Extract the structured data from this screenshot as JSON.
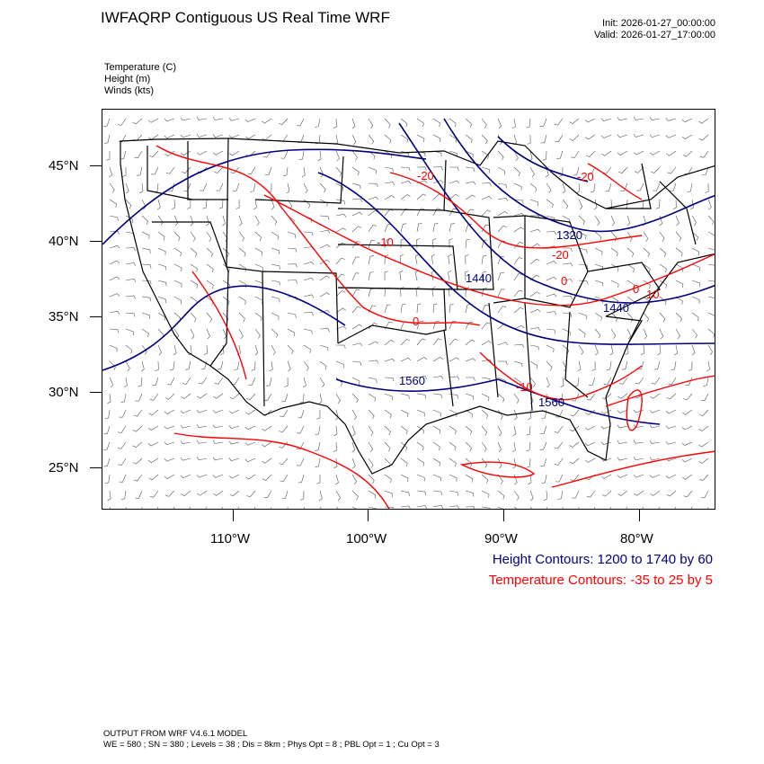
{
  "header": {
    "title": "IWFAQRP Contiguous US Real Time WRF",
    "init": "Init: 2026-01-27_00:00:00",
    "valid": "Valid: 2026-01-27_17:00:00"
  },
  "fields": {
    "temperature": "Temperature   (C)",
    "height": "Height   (m)",
    "winds": "Winds   (kts)"
  },
  "axes": {
    "lat_labels": [
      "45°N",
      "40°N",
      "35°N",
      "30°N",
      "25°N"
    ],
    "lon_labels": [
      "110°W",
      "100°W",
      "90°W",
      "80°W"
    ]
  },
  "contour_labels": {
    "height": [
      "1320",
      "1440",
      "1440",
      "1560",
      "1560"
    ],
    "temperature": [
      "-20",
      "-20",
      "-20",
      "-10",
      "-10",
      "0",
      "0",
      "0",
      "10"
    ]
  },
  "legend": {
    "height": "Height Contours: 1200 to 1740 by 60",
    "temperature": "Temperature Contours: -35 to 25 by 5"
  },
  "footer": {
    "line1": "OUTPUT FROM WRF V4.6.1 MODEL",
    "line2": "WE = 580 ; SN = 380 ; Levels = 38 ; Dis = 8km ; Phys Opt = 8 ; PBL Opt = 1 ; Cu Opt = 3"
  },
  "colors": {
    "height_contour": "#000080",
    "temperature_contour": "#ff0000",
    "borders": "#000000",
    "wind_barbs": "#000000"
  }
}
